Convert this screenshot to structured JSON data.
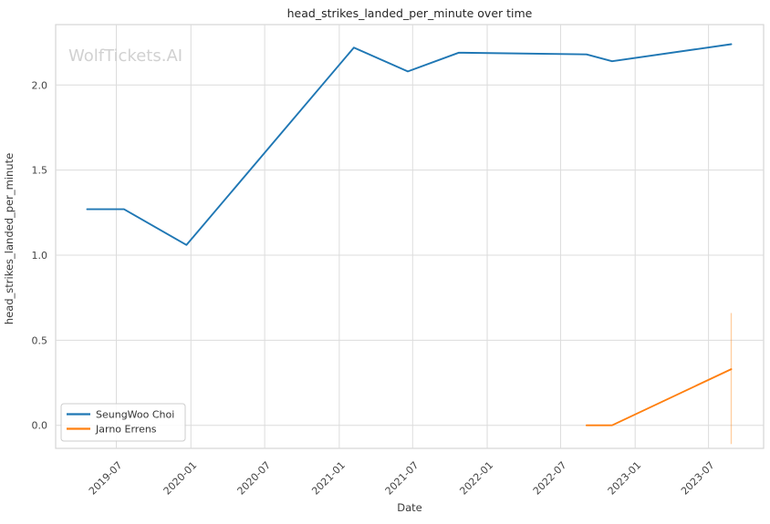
{
  "page": {
    "watermark": "WolfTickets.AI"
  },
  "chart_data": {
    "type": "line",
    "title": "head_strikes_landed_per_minute over time",
    "xlabel": "Date",
    "ylabel": "head_strikes_landed_per_minute",
    "x_tick_labels": [
      "2019-07",
      "2020-01",
      "2020-07",
      "2021-01",
      "2021-07",
      "2022-01",
      "2022-07",
      "2023-01",
      "2023-07"
    ],
    "y_tick_labels": [
      "0.0",
      "0.5",
      "1.0",
      "1.5",
      "2.0"
    ],
    "ylim": [
      -0.14,
      2.36
    ],
    "grid": true,
    "legend_position": "lower-left",
    "series": [
      {
        "name": "SeungWoo Choi",
        "color": "#1f77b4",
        "points": [
          {
            "date": "2019-04-20",
            "value": 1.27
          },
          {
            "date": "2019-07-20",
            "value": 1.27
          },
          {
            "date": "2019-12-21",
            "value": 1.06
          },
          {
            "date": "2021-02-06",
            "value": 2.22
          },
          {
            "date": "2021-06-19",
            "value": 2.08
          },
          {
            "date": "2021-10-23",
            "value": 2.19
          },
          {
            "date": "2022-09-03",
            "value": 2.18
          },
          {
            "date": "2022-11-05",
            "value": 2.14
          },
          {
            "date": "2023-08-26",
            "value": 2.24
          }
        ]
      },
      {
        "name": "Jarno Errens",
        "color": "#ff7f0e",
        "points": [
          {
            "date": "2022-09-03",
            "value": 0.0
          },
          {
            "date": "2022-11-05",
            "value": 0.0
          },
          {
            "date": "2023-08-26",
            "value": 0.33,
            "ci_low": -0.11,
            "ci_high": 0.66
          }
        ]
      }
    ]
  }
}
